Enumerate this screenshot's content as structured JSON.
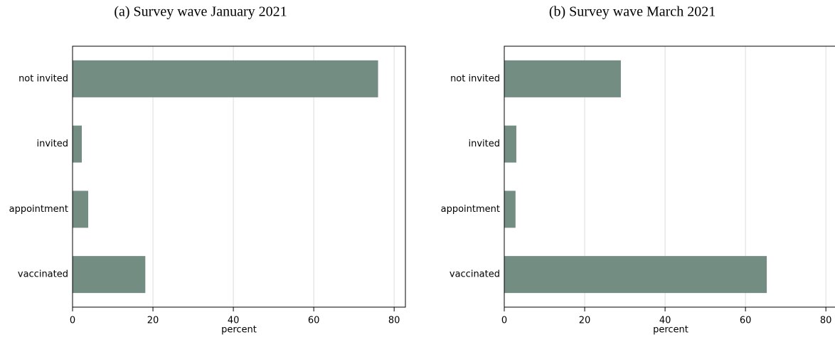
{
  "chart_data": [
    {
      "type": "barh",
      "title": "(a) Survey wave January 2021",
      "xlabel": "percent",
      "categories": [
        "not invited",
        "invited",
        "appointment",
        "vaccinated"
      ],
      "values": [
        76,
        2.3,
        3.9,
        18.1
      ],
      "color": "#748d83",
      "xlim": [
        0,
        82.8
      ],
      "xticks": [
        0,
        20,
        40,
        60,
        80
      ],
      "grid": true
    },
    {
      "type": "barh",
      "title": "(b) Survey wave March 2021",
      "xlabel": "percent",
      "categories": [
        "not invited",
        "invited",
        "appointment",
        "vaccinated"
      ],
      "values": [
        29,
        3,
        2.8,
        65.3
      ],
      "color": "#748d83",
      "xlim": [
        0,
        82.8
      ],
      "xticks": [
        0,
        20,
        40,
        60,
        80
      ],
      "grid": true
    }
  ]
}
